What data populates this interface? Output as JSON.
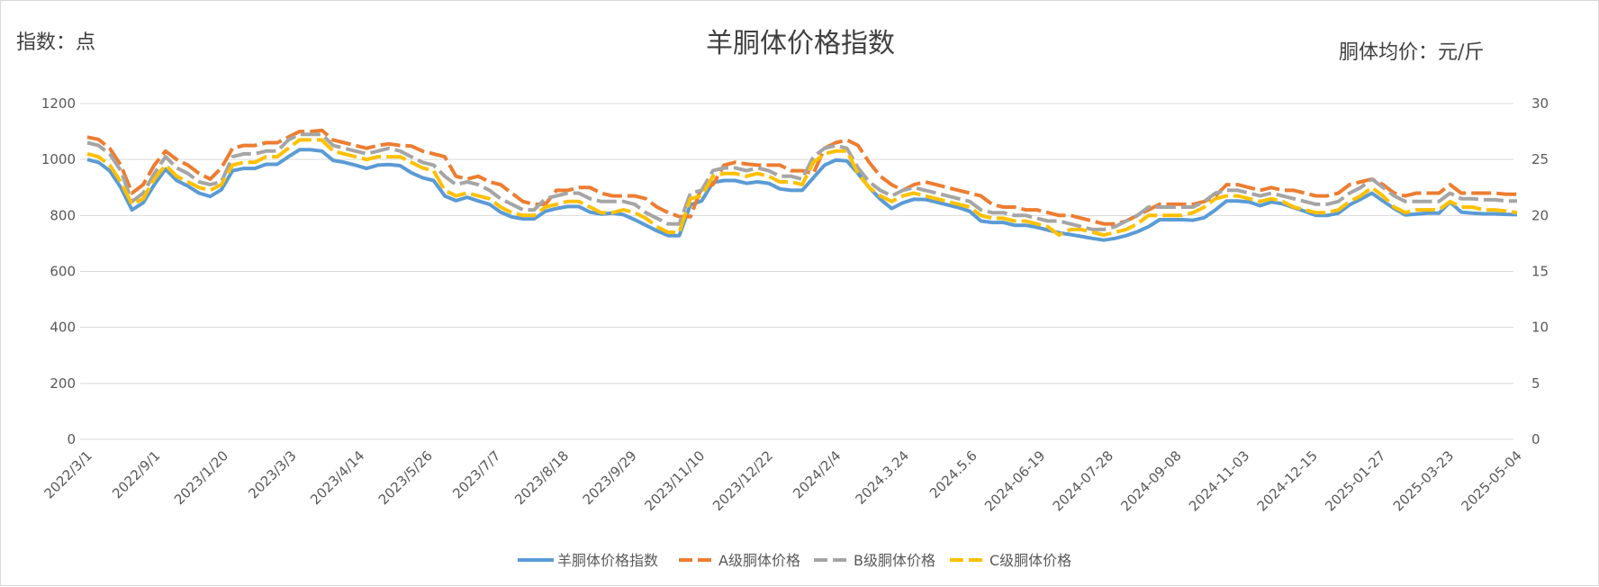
{
  "chart_data": {
    "type": "line",
    "title": "羊胴体价格指数",
    "left_axis_label": "指数：点",
    "right_axis_label": "胴体均价：元/斤",
    "left_ylim": [
      0,
      1200
    ],
    "left_yticks": [
      0,
      200,
      400,
      600,
      800,
      1000,
      1200
    ],
    "right_ylim": [
      0,
      30
    ],
    "right_yticks": [
      0,
      5,
      10,
      15,
      20,
      25,
      30
    ],
    "grid": true,
    "legend_position": "bottom",
    "x_tick_labels": [
      "2022/3/1",
      "2022/9/1",
      "2023/1/20",
      "2023/3/3",
      "2023/4/14",
      "2023/5/26",
      "2023/7/7",
      "2023/8/18",
      "2023/9/29",
      "2023/11/10",
      "2023/12/22",
      "2024/2/4",
      "2024.3.24",
      "2024.5.6",
      "2024-06-19",
      "2024-07-28",
      "2024-09-08",
      "2024-11-03",
      "2024-12-15",
      "2025-01-27",
      "2025-03-23",
      "2025-05-04"
    ],
    "series": [
      {
        "name": "羊胴体价格指数",
        "axis": "left",
        "style": "solid",
        "color": "#5b9bd5",
        "values": [
          1000,
          990,
          960,
          900,
          820,
          845,
          910,
          965,
          925,
          905,
          880,
          868,
          892,
          960,
          968,
          968,
          983,
          983,
          1010,
          1035,
          1035,
          1030,
          997,
          990,
          980,
          968,
          980,
          982,
          978,
          953,
          935,
          925,
          870,
          853,
          865,
          852,
          840,
          812,
          795,
          788,
          788,
          815,
          825,
          832,
          832,
          812,
          805,
          808,
          803,
          785,
          765,
          745,
          728,
          728,
          838,
          852,
          918,
          925,
          925,
          915,
          920,
          915,
          895,
          890,
          890,
          935,
          980,
          998,
          995,
          950,
          900,
          858,
          825,
          845,
          858,
          857,
          848,
          838,
          828,
          815,
          780,
          775,
          775,
          765,
          765,
          758,
          748,
          738,
          732,
          725,
          718,
          712,
          718,
          728,
          742,
          760,
          785,
          785,
          785,
          783,
          792,
          820,
          852,
          852,
          848,
          835,
          848,
          842,
          828,
          815,
          800,
          800,
          808,
          838,
          858,
          880,
          852,
          825,
          802,
          805,
          808,
          808,
          848,
          812,
          808,
          806,
          806,
          804,
          803
        ]
      },
      {
        "name": "A级胴体价格",
        "axis": "right",
        "style": "dashed",
        "color": "#ed7d31",
        "values": [
          27.0,
          26.8,
          26.0,
          24.5,
          22.0,
          22.75,
          24.5,
          25.75,
          25.0,
          24.5,
          23.75,
          23.25,
          24.25,
          26.0,
          26.25,
          26.25,
          26.5,
          26.5,
          27.0,
          27.5,
          27.5,
          27.6,
          26.75,
          26.5,
          26.25,
          26.0,
          26.25,
          26.4,
          26.25,
          26.2,
          25.75,
          25.5,
          25.25,
          23.5,
          23.25,
          23.5,
          23.0,
          22.75,
          22.0,
          21.25,
          21.0,
          21.0,
          22.25,
          22.25,
          22.5,
          22.5,
          22.0,
          21.75,
          21.75,
          21.75,
          21.5,
          20.75,
          20.25,
          19.9,
          19.9,
          22.5,
          22.75,
          24.5,
          24.75,
          24.6,
          24.5,
          24.5,
          24.5,
          24.0,
          24.0,
          23.75,
          26.0,
          26.5,
          26.75,
          26.25,
          24.75,
          23.5,
          22.75,
          22.25,
          22.75,
          23.0,
          22.75,
          22.5,
          22.25,
          22.0,
          21.75,
          21.0,
          20.75,
          20.75,
          20.5,
          20.5,
          20.25,
          20.0,
          20.0,
          19.75,
          19.5,
          19.25,
          19.25,
          19.5,
          20.0,
          20.5,
          21.0,
          21.0,
          21.0,
          21.0,
          21.25,
          21.75,
          22.75,
          22.75,
          22.5,
          22.25,
          22.5,
          22.25,
          22.25,
          22.0,
          21.75,
          21.75,
          22.0,
          22.75,
          23.0,
          23.25,
          22.75,
          22.0,
          21.75,
          22.0,
          22.0,
          22.0,
          22.75,
          22.0,
          22.0,
          22.0,
          22.0,
          21.9,
          21.9
        ]
      },
      {
        "name": "B级胴体价格",
        "axis": "right",
        "style": "dashed",
        "color": "#a5a5a5",
        "values": [
          26.5,
          26.25,
          25.5,
          24.0,
          21.25,
          22.0,
          23.75,
          25.25,
          24.25,
          23.75,
          23.0,
          22.75,
          23.0,
          25.25,
          25.5,
          25.5,
          25.75,
          25.75,
          26.75,
          27.25,
          27.25,
          27.25,
          26.25,
          26.0,
          25.75,
          25.5,
          25.75,
          26.0,
          25.75,
          25.25,
          24.75,
          24.5,
          23.5,
          22.75,
          23.0,
          22.75,
          22.25,
          21.5,
          21.0,
          20.5,
          20.5,
          21.5,
          21.75,
          22.0,
          22.0,
          21.5,
          21.25,
          21.25,
          21.25,
          21.0,
          20.25,
          19.75,
          19.25,
          19.25,
          22.0,
          22.25,
          24.0,
          24.25,
          24.25,
          24.0,
          24.25,
          24.0,
          23.5,
          23.5,
          23.25,
          25.25,
          26.0,
          26.25,
          26.0,
          24.25,
          23.0,
          22.25,
          21.75,
          22.25,
          22.5,
          22.25,
          22.0,
          21.75,
          21.5,
          21.25,
          20.5,
          20.25,
          20.25,
          20.0,
          20.0,
          19.75,
          19.5,
          19.5,
          19.25,
          19.0,
          18.75,
          18.75,
          19.0,
          19.5,
          20.0,
          20.75,
          20.75,
          20.75,
          20.75,
          20.75,
          21.25,
          22.0,
          22.25,
          22.25,
          22.0,
          21.75,
          22.0,
          21.75,
          21.5,
          21.25,
          21.0,
          21.0,
          21.25,
          22.0,
          22.5,
          23.25,
          22.5,
          21.75,
          21.25,
          21.25,
          21.25,
          21.25,
          22.0,
          21.5,
          21.5,
          21.4,
          21.4,
          21.3,
          21.3
        ]
      },
      {
        "name": "C级胴体价格",
        "axis": "right",
        "style": "dashed",
        "color": "#ffc000",
        "values": [
          25.5,
          25.25,
          24.5,
          23.0,
          21.0,
          21.5,
          23.25,
          24.5,
          23.5,
          23.0,
          22.5,
          22.25,
          22.75,
          24.5,
          24.75,
          24.75,
          25.25,
          25.25,
          26.0,
          26.75,
          26.75,
          26.75,
          25.75,
          25.5,
          25.25,
          25.0,
          25.25,
          25.25,
          25.25,
          24.75,
          24.25,
          24.0,
          22.25,
          21.75,
          22.0,
          21.75,
          21.5,
          20.75,
          20.25,
          20.0,
          20.0,
          20.75,
          21.0,
          21.25,
          21.25,
          20.75,
          20.25,
          20.25,
          20.5,
          20.25,
          19.75,
          19.0,
          18.5,
          18.5,
          21.5,
          21.75,
          23.5,
          23.75,
          23.75,
          23.5,
          23.75,
          23.5,
          23.0,
          23.0,
          22.75,
          24.75,
          25.5,
          25.75,
          25.75,
          23.75,
          22.5,
          21.75,
          21.25,
          21.75,
          22.0,
          21.75,
          21.5,
          21.25,
          21.0,
          20.75,
          20.0,
          19.75,
          19.75,
          19.5,
          19.5,
          19.25,
          19.0,
          18.25,
          18.75,
          18.75,
          18.5,
          18.25,
          18.5,
          18.75,
          19.25,
          20.0,
          20.0,
          20.0,
          20.0,
          20.25,
          20.75,
          21.5,
          21.75,
          21.75,
          21.5,
          21.25,
          21.5,
          21.25,
          20.75,
          20.5,
          20.25,
          20.25,
          20.5,
          21.25,
          21.75,
          22.5,
          21.75,
          20.75,
          20.25,
          20.5,
          20.5,
          20.5,
          21.25,
          20.75,
          20.75,
          20.5,
          20.5,
          20.4,
          20.25
        ]
      }
    ]
  }
}
